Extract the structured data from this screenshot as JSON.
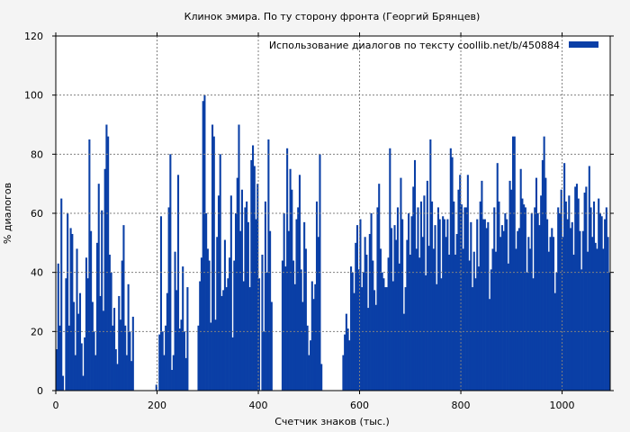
{
  "chart_data": {
    "type": "bar",
    "title": "Клинок эмира. По ту сторону фронта (Георгий Брянцев)",
    "xlabel": "Счетчик знаков (тыс.)",
    "ylabel": "% диалогов",
    "xlim": [
      0,
      1095
    ],
    "ylim": [
      0,
      120
    ],
    "xticks": [
      0,
      200,
      400,
      600,
      800,
      1000
    ],
    "yticks": [
      0,
      20,
      40,
      60,
      80,
      100,
      120
    ],
    "grid": true,
    "legend_position": "top-right",
    "series": [
      {
        "name": "Использование диалогов по тексту  coollib.net/b/450884",
        "color": "#0a3fa6",
        "values": [
          14,
          43,
          22,
          65,
          5,
          0,
          38,
          60,
          22,
          55,
          53,
          30,
          12,
          48,
          26,
          33,
          16,
          5,
          18,
          45,
          38,
          85,
          54,
          30,
          20,
          12,
          50,
          70,
          32,
          61,
          27,
          75,
          90,
          86,
          46,
          40,
          22,
          28,
          14,
          9,
          32,
          24,
          44,
          56,
          22,
          12,
          36,
          20,
          10,
          25,
          0,
          0,
          0,
          0,
          0,
          0,
          0,
          0,
          0,
          0,
          0,
          0,
          0,
          0,
          2,
          0,
          19,
          59,
          20,
          12,
          22,
          33,
          62,
          80,
          7,
          12,
          47,
          34,
          73,
          21,
          24,
          42,
          20,
          11,
          35,
          0,
          0,
          0,
          0,
          0,
          0,
          22,
          37,
          45,
          98,
          100,
          60,
          48,
          44,
          23,
          90,
          86,
          24,
          52,
          66,
          80,
          32,
          34,
          51,
          35,
          38,
          45,
          66,
          18,
          44,
          60,
          72,
          90,
          54,
          68,
          37,
          62,
          64,
          57,
          35,
          78,
          83,
          76,
          58,
          70,
          38,
          0,
          46,
          20,
          64,
          40,
          85,
          54,
          30,
          0,
          0,
          0,
          0,
          0,
          0,
          44,
          60,
          42,
          82,
          54,
          75,
          68,
          44,
          36,
          58,
          62,
          73,
          41,
          30,
          57,
          48,
          22,
          12,
          17,
          37,
          31,
          36,
          64,
          52,
          80,
          9,
          0,
          0,
          0,
          0,
          0,
          0,
          0,
          0,
          0,
          0,
          0,
          0,
          0,
          12,
          19,
          26,
          21,
          17,
          42,
          40,
          33,
          50,
          56,
          41,
          58,
          35,
          40,
          52,
          46,
          28,
          53,
          60,
          44,
          34,
          29,
          62,
          70,
          48,
          40,
          38,
          35,
          35,
          45,
          82,
          55,
          37,
          56,
          51,
          62,
          43,
          72,
          58,
          26,
          35,
          51,
          60,
          46,
          59,
          69,
          78,
          48,
          62,
          45,
          64,
          52,
          66,
          39,
          71,
          49,
          85,
          64,
          48,
          56,
          36,
          62,
          58,
          38,
          59,
          58,
          52,
          58,
          46,
          82,
          79,
          64,
          46,
          53,
          68,
          73,
          63,
          48,
          62,
          62,
          73,
          44,
          57,
          35,
          47,
          38,
          58,
          42,
          64,
          71,
          58,
          58,
          55,
          57,
          31,
          41,
          48,
          62,
          47,
          77,
          64,
          52,
          56,
          54,
          60,
          58,
          43,
          71,
          68,
          86,
          86,
          48,
          54,
          55,
          75,
          65,
          63,
          62,
          40,
          52,
          48,
          60,
          38,
          62,
          72,
          60,
          56,
          66,
          78,
          86,
          72,
          58,
          47,
          52,
          55,
          52,
          33,
          40,
          62,
          60,
          68,
          52,
          77,
          64,
          58,
          66,
          55,
          57,
          46,
          69,
          70,
          65,
          54,
          41,
          54,
          67,
          69,
          47,
          76,
          62,
          52,
          64,
          50,
          48,
          65,
          60,
          59,
          48,
          58,
          62,
          52,
          40
        ]
      }
    ]
  }
}
